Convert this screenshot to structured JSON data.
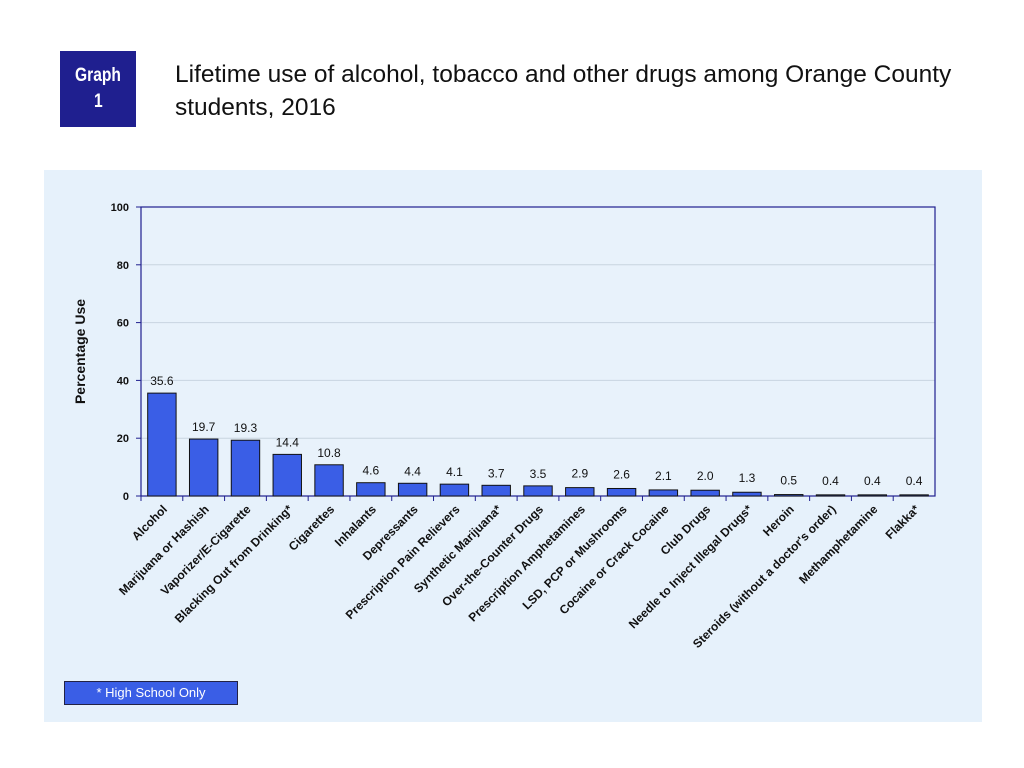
{
  "badge": {
    "line1": "Graph",
    "line2": "1"
  },
  "title": "Lifetime use of alcohol, tobacco and other drugs among Orange County students, 2016",
  "footnote": "* High School Only",
  "colors": {
    "bar": "#3a5ee6",
    "badge": "#1f1f8f",
    "panel": "#e6f1fb",
    "axis": "#1f1f8f"
  },
  "chart_data": {
    "type": "bar",
    "title": "",
    "xlabel": "",
    "ylabel": "Percentage Use",
    "ylim": [
      0,
      100
    ],
    "yticks": [
      0,
      20,
      40,
      60,
      80,
      100
    ],
    "grid": true,
    "categories": [
      "Alcohol",
      "Marijuana or Hashish",
      "Vaporizer/E-Cigarette",
      "Blacking Out from Drinking*",
      "Cigarettes",
      "Inhalants",
      "Depressants",
      "Prescription Pain Relievers",
      "Synthetic Marijuana*",
      "Over-the-Counter Drugs",
      "Prescription Amphetamines",
      "LSD, PCP or Mushrooms",
      "Cocaine or Crack Cocaine",
      "Club Drugs",
      "Needle to Inject Illegal Drugs*",
      "Heroin",
      "Steroids (without a doctor's order)",
      "Methamphetamine",
      "Flakka*"
    ],
    "values": [
      35.6,
      19.7,
      19.3,
      14.4,
      10.8,
      4.6,
      4.4,
      4.1,
      3.7,
      3.5,
      2.9,
      2.6,
      2.1,
      2.0,
      1.3,
      0.5,
      0.4,
      0.4,
      0.4
    ],
    "value_labels": [
      "35.6",
      "19.7",
      "19.3",
      "14.4",
      "10.8",
      "4.6",
      "4.4",
      "4.1",
      "3.7",
      "3.5",
      "2.9",
      "2.6",
      "2.1",
      "2.0",
      "1.3",
      "0.5",
      "0.4",
      "0.4",
      "0.4"
    ]
  }
}
